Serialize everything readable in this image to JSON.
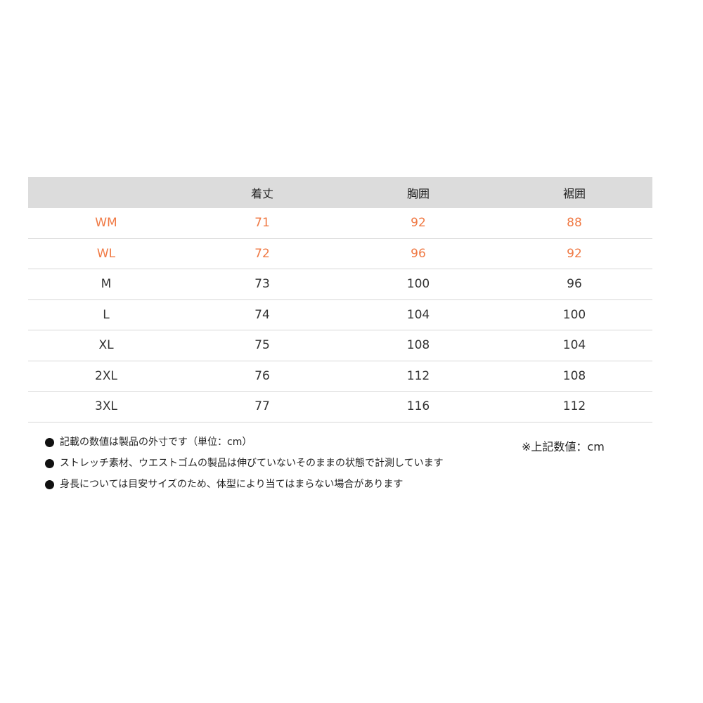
{
  "table": {
    "headers": [
      "",
      "着丈",
      "胸囲",
      "裾囲"
    ],
    "rows": [
      {
        "size": "WM",
        "cells": [
          "71",
          "92",
          "88"
        ],
        "highlight": true
      },
      {
        "size": "WL",
        "cells": [
          "72",
          "96",
          "92"
        ],
        "highlight": true
      },
      {
        "size": "M",
        "cells": [
          "73",
          "100",
          "96"
        ],
        "highlight": false
      },
      {
        "size": "L",
        "cells": [
          "74",
          "104",
          "100"
        ],
        "highlight": false
      },
      {
        "size": "XL",
        "cells": [
          "75",
          "108",
          "104"
        ],
        "highlight": false
      },
      {
        "size": "2XL",
        "cells": [
          "76",
          "112",
          "108"
        ],
        "highlight": false
      },
      {
        "size": "3XL",
        "cells": [
          "77",
          "116",
          "112"
        ],
        "highlight": false
      }
    ]
  },
  "notes": [
    "記載の数値は製品の外寸です（単位：cm）",
    "ストレッチ素材、ウエストゴムの製品は伸びていないそのままの状態で計測しています",
    "身長については目安サイズのため、体型により当てはまらない場合があります"
  ],
  "unit_note": "※上記数値：cm",
  "colors": {
    "highlight": "#f07a45",
    "header_bg": "#dcdcdc"
  }
}
